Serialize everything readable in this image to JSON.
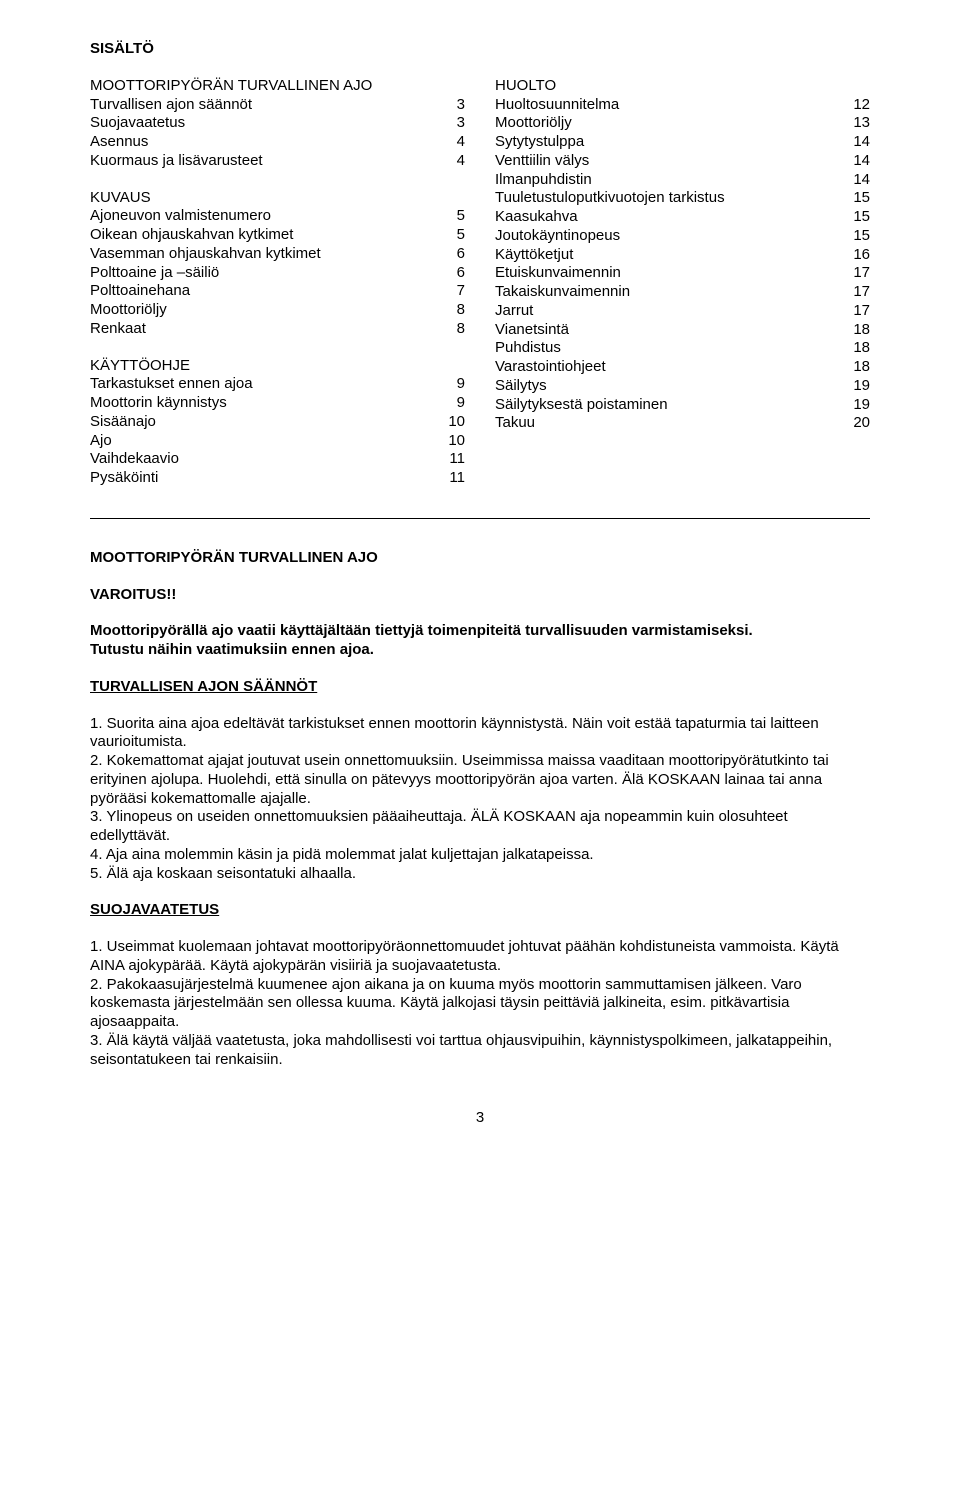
{
  "toc": {
    "title": "SISÄLTÖ",
    "left": {
      "sections": [
        {
          "head": "MOOTTORIPYÖRÄN TURVALLINEN AJO",
          "items": [
            {
              "label": "Turvallisen ajon säännöt",
              "page": "3"
            },
            {
              "label": "Suojavaatetus",
              "page": "3"
            },
            {
              "label": "Asennus",
              "page": "4"
            },
            {
              "label": "Kuormaus ja lisävarusteet",
              "page": "4"
            }
          ]
        },
        {
          "head": "KUVAUS",
          "items": [
            {
              "label": "Ajoneuvon valmistenumero",
              "page": "5"
            },
            {
              "label": "Oikean ohjauskahvan kytkimet",
              "page": "5"
            },
            {
              "label": "Vasemman ohjauskahvan kytkimet",
              "page": "6"
            },
            {
              "label": "Polttoaine ja –säiliö",
              "page": "6"
            },
            {
              "label": "Polttoainehana",
              "page": "7"
            },
            {
              "label": "Moottoriöljy",
              "page": "8"
            },
            {
              "label": "Renkaat",
              "page": "8"
            }
          ]
        },
        {
          "head": "KÄYTTÖOHJE",
          "items": [
            {
              "label": "Tarkastukset ennen ajoa",
              "page": "9"
            },
            {
              "label": "Moottorin käynnistys",
              "page": "9"
            },
            {
              "label": "Sisäänajo",
              "page": "10"
            },
            {
              "label": "Ajo",
              "page": "10"
            },
            {
              "label": "Vaihdekaavio",
              "page": "11"
            },
            {
              "label": "Pysäköinti",
              "page": "11"
            }
          ]
        }
      ]
    },
    "right": {
      "sections": [
        {
          "head": "HUOLTO",
          "items": [
            {
              "label": "Huoltosuunnitelma",
              "page": "12"
            },
            {
              "label": "Moottoriöljy",
              "page": "13"
            },
            {
              "label": "Sytytystulppa",
              "page": "14"
            },
            {
              "label": "Venttiilin välys",
              "page": "14"
            },
            {
              "label": "Ilmanpuhdistin",
              "page": "14"
            },
            {
              "label": "Tuuletustuloputkivuotojen tarkistus",
              "page": "15"
            },
            {
              "label": "Kaasukahva",
              "page": "15"
            },
            {
              "label": "Joutokäyntinopeus",
              "page": "15"
            },
            {
              "label": "Käyttöketjut",
              "page": "16"
            },
            {
              "label": "Etuiskunvaimennin",
              "page": "17"
            },
            {
              "label": "Takaiskunvaimennin",
              "page": "17"
            },
            {
              "label": "Jarrut",
              "page": "17"
            },
            {
              "label": "Vianetsintä",
              "page": "18"
            },
            {
              "label": "Puhdistus",
              "page": "18"
            },
            {
              "label": "Varastointiohjeet",
              "page": "18"
            },
            {
              "label": "Säilytys",
              "page": "19"
            },
            {
              "label": "Säilytyksestä poistaminen",
              "page": "19"
            },
            {
              "label": "Takuu",
              "page": "20"
            }
          ]
        }
      ]
    }
  },
  "main": {
    "heading": "MOOTTORIPYÖRÄN TURVALLINEN AJO",
    "warning": "VAROITUS!!",
    "intro1": "Moottoripyörällä ajo vaatii käyttäjältään tiettyjä toimenpiteitä turvallisuuden varmistamiseksi.",
    "intro2": "Tutustu näihin vaatimuksiin ennen ajoa.",
    "rulesHeading": "TURVALLISEN AJON SÄÄNNÖT",
    "rules": [
      "1. Suorita aina ajoa edeltävät tarkistukset ennen moottorin käynnistystä. Näin voit estää tapaturmia tai laitteen vaurioitumista.",
      "2. Kokemattomat ajajat joutuvat usein onnettomuuksiin. Useimmissa maissa vaaditaan moottoripyörätutkinto tai erityinen ajolupa. Huolehdi, että sinulla on pätevyys moottoripyörän ajoa varten. Älä KOSKAAN lainaa tai anna pyörääsi kokemattomalle ajajalle.",
      "3. Ylinopeus on useiden onnettomuuksien pääaiheuttaja. ÄLÄ KOSKAAN aja nopeammin kuin olosuhteet edellyttävät.",
      "4. Aja aina molemmin käsin ja pidä molemmat jalat kuljettajan jalkatapeissa.",
      "5. Älä aja koskaan seisontatuki alhaalla."
    ],
    "protHeading": "SUOJAVAATETUS",
    "prot": [
      "1. Useimmat kuolemaan johtavat moottoripyöräonnettomuudet johtuvat päähän kohdistuneista vammoista. Käytä AINA ajokypärää. Käytä ajokypärän visiiriä ja suojavaatetusta.",
      "2. Pakokaasujärjestelmä kuumenee ajon aikana ja on kuuma myös moottorin sammuttamisen jälkeen. Varo koskemasta järjestelmään sen ollessa kuuma. Käytä jalkojasi täysin peittäviä jalkineita, esim. pitkävartisia ajosaappaita.",
      "3. Älä käytä väljää vaatetusta, joka mahdollisesti voi tarttua ohjausvipuihin, käynnistyspolkimeen, jalkatappeihin, seisontatukeen tai renkaisiin."
    ]
  },
  "pageNumber": "3"
}
